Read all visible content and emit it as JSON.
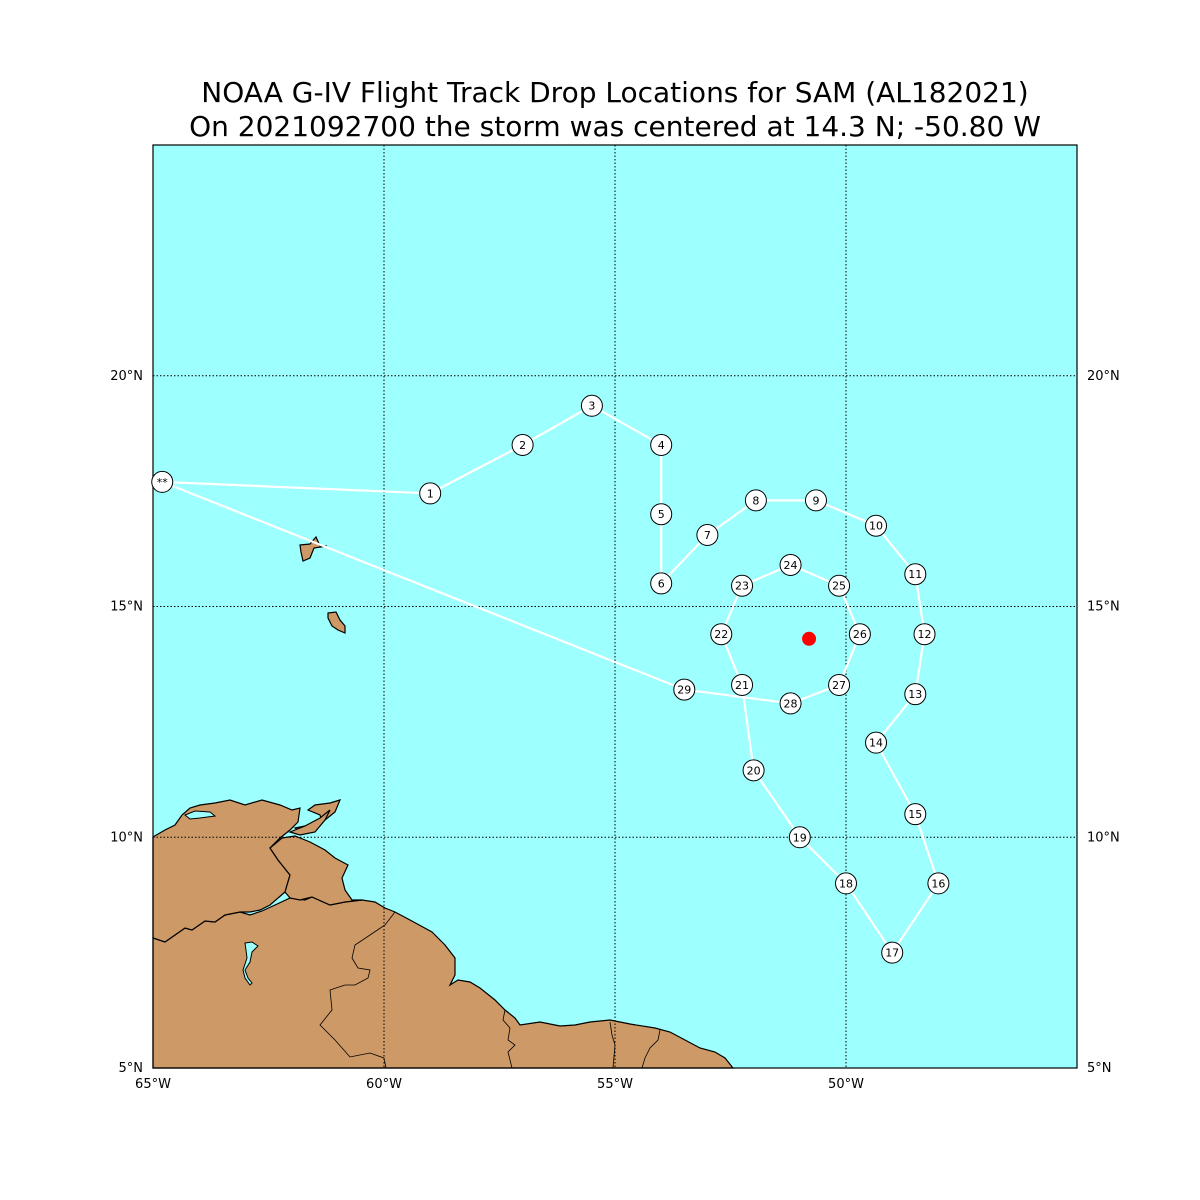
{
  "title": {
    "line1": "NOAA G-IV Flight Track Drop Locations for SAM (AL182021)",
    "line2": "On 2021092700 the storm was centered at 14.3 N; -50.80 W"
  },
  "map": {
    "lon_range": [
      -65,
      -45
    ],
    "lat_range": [
      5,
      25
    ],
    "ocean_color": "#9effff",
    "land_color": "#cd9966",
    "track_color": "#ffffff",
    "storm_color": "#ff0000",
    "meridians": [
      -60,
      -55,
      -50
    ],
    "parallels": [
      10,
      15,
      20
    ],
    "lat_ticks": [
      {
        "lat": 20,
        "label": "20°N"
      },
      {
        "lat": 15,
        "label": "15°N"
      },
      {
        "lat": 10,
        "label": "10°N"
      },
      {
        "lat": 5,
        "label": "5°N"
      }
    ],
    "lon_ticks": [
      {
        "lon": -65,
        "label": "65°W"
      },
      {
        "lon": -60,
        "label": "60°W"
      },
      {
        "lon": -55,
        "label": "55°W"
      },
      {
        "lon": -50,
        "label": "50°W"
      }
    ]
  },
  "storm_center": {
    "lat": 14.3,
    "lon": -50.8
  },
  "flight_track": {
    "start_marker": "**",
    "start": {
      "lon": -64.8,
      "lat": 17.7
    },
    "drops": [
      {
        "label": "1",
        "lon": -59.0,
        "lat": 17.45
      },
      {
        "label": "2",
        "lon": -57.0,
        "lat": 18.5
      },
      {
        "label": "3",
        "lon": -55.5,
        "lat": 19.35
      },
      {
        "label": "4",
        "lon": -54.0,
        "lat": 18.5
      },
      {
        "label": "5",
        "lon": -54.0,
        "lat": 17.0
      },
      {
        "label": "6",
        "lon": -54.0,
        "lat": 15.5
      },
      {
        "label": "7",
        "lon": -53.0,
        "lat": 16.55
      },
      {
        "label": "8",
        "lon": -51.95,
        "lat": 17.3
      },
      {
        "label": "9",
        "lon": -50.65,
        "lat": 17.3
      },
      {
        "label": "10",
        "lon": -49.35,
        "lat": 16.75
      },
      {
        "label": "11",
        "lon": -48.5,
        "lat": 15.7
      },
      {
        "label": "12",
        "lon": -48.3,
        "lat": 14.4
      },
      {
        "label": "13",
        "lon": -48.5,
        "lat": 13.1
      },
      {
        "label": "14",
        "lon": -49.35,
        "lat": 12.05
      },
      {
        "label": "15",
        "lon": -48.5,
        "lat": 10.5
      },
      {
        "label": "16",
        "lon": -48.0,
        "lat": 9.0
      },
      {
        "label": "17",
        "lon": -49.0,
        "lat": 7.5
      },
      {
        "label": "18",
        "lon": -50.0,
        "lat": 9.0
      },
      {
        "label": "19",
        "lon": -51.0,
        "lat": 10.0
      },
      {
        "label": "20",
        "lon": -52.0,
        "lat": 11.45
      },
      {
        "label": "21",
        "lon": -52.25,
        "lat": 13.3
      },
      {
        "label": "22",
        "lon": -52.7,
        "lat": 14.4
      },
      {
        "label": "23",
        "lon": -52.25,
        "lat": 15.45
      },
      {
        "label": "24",
        "lon": -51.2,
        "lat": 15.9
      },
      {
        "label": "25",
        "lon": -50.15,
        "lat": 15.45
      },
      {
        "label": "26",
        "lon": -49.7,
        "lat": 14.4
      },
      {
        "label": "27",
        "lon": -50.15,
        "lat": 13.3
      },
      {
        "label": "28",
        "lon": -51.2,
        "lat": 12.9
      },
      {
        "label": "29",
        "lon": -53.5,
        "lat": 13.2
      }
    ]
  }
}
